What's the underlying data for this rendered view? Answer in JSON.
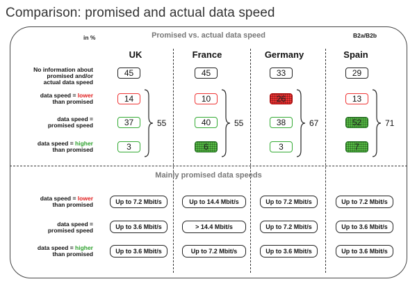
{
  "page_title": "Comparison: promised and actual data speed",
  "unit_label": "in %",
  "top_heading": "Promised vs. actual data speed",
  "code_label": "B2a/B2b",
  "countries": [
    "UK",
    "France",
    "Germany",
    "Spain"
  ],
  "row_labels": {
    "no_info": [
      "No information about",
      "promised and/or",
      "actual data speed"
    ],
    "lower": {
      "prefix": "data speed = ",
      "word": "lower",
      "line2": "than promised"
    },
    "promised": [
      "data speed =",
      "promised speed"
    ],
    "higher": {
      "prefix": "data speed = ",
      "word": "higher",
      "line2": "than promised"
    }
  },
  "values": {
    "no_info": [
      "45",
      "45",
      "33",
      "29"
    ],
    "lower": [
      "14",
      "10",
      "26",
      "13"
    ],
    "promised": [
      "37",
      "40",
      "38",
      "52"
    ],
    "higher": [
      "3",
      "6",
      "3",
      "7"
    ]
  },
  "sums": [
    "55",
    "55",
    "67",
    "71"
  ],
  "bottom_heading": "Mainly promised data speeds",
  "speeds": {
    "lower": [
      "Up to 7.2 Mbit/s",
      "Up to 14.4 Mbit/s",
      "Up to 7.2 Mbit/s",
      "Up to 7.2 Mbit/s"
    ],
    "promised": [
      "Up to 3.6 Mbit/s",
      "> 14.4 Mbit/s",
      "Up to 7.2 Mbit/s",
      "Up to 3.6 Mbit/s"
    ],
    "higher": [
      "Up to 3.6 Mbit/s",
      "Up to 7.2 Mbit/s",
      "Up to 3.6 Mbit/s",
      "Up to 3.6 Mbit/s"
    ]
  },
  "colors": {
    "lower": "#e11b1b",
    "higher": "#2ca02c",
    "highlight_red": "#ee3333",
    "highlight_green": "#55bb44"
  }
}
